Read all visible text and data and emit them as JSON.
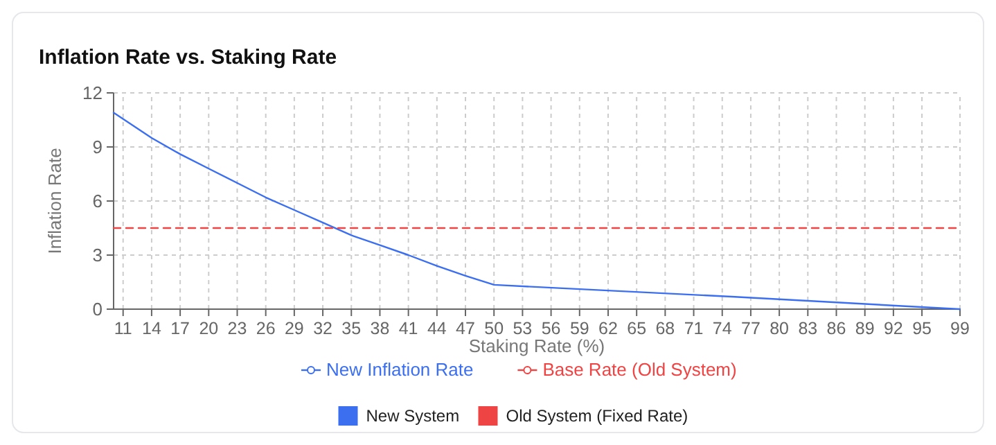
{
  "chart_data": {
    "type": "line",
    "title": "Inflation Rate vs. Staking Rate",
    "xlabel": "Staking Rate (%)",
    "ylabel": "Inflation Rate",
    "series": [
      {
        "name": "New Inflation Rate",
        "color": "#3b6ff0",
        "x": [
          10,
          14,
          17,
          20,
          23,
          26,
          29,
          32,
          35,
          38,
          41,
          44,
          47,
          50,
          75,
          99
        ],
        "values": [
          10.9,
          9.5,
          8.6,
          7.8,
          7.0,
          6.2,
          5.5,
          4.8,
          4.1,
          3.55,
          3.0,
          2.4,
          1.85,
          1.35,
          0.69,
          0
        ],
        "line_style": "solid"
      },
      {
        "name": "Base Rate (Old System)",
        "color": "#ef4444",
        "x": [
          10,
          99
        ],
        "values": [
          4.5,
          4.5
        ],
        "line_style": "dashed"
      }
    ],
    "xlim": [
      10,
      99
    ],
    "xticks": [
      11,
      14,
      17,
      20,
      23,
      26,
      29,
      32,
      35,
      38,
      41,
      44,
      47,
      50,
      53,
      56,
      59,
      62,
      65,
      68,
      71,
      74,
      77,
      80,
      83,
      86,
      89,
      92,
      95,
      99
    ],
    "ylim": [
      0,
      12
    ],
    "yticks": [
      0,
      3,
      6,
      9,
      12
    ],
    "grid": true,
    "legend": "bottom",
    "marker": "none",
    "annotations": [
      "New System",
      "Old System (Fixed Rate)"
    ]
  }
}
